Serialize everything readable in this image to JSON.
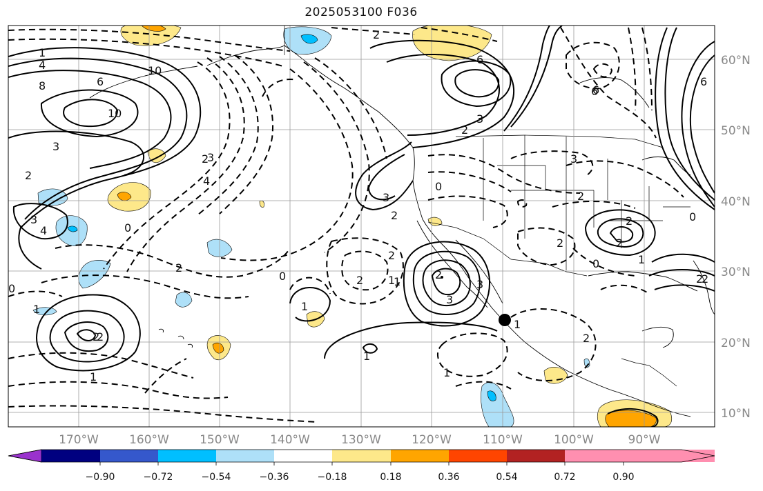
{
  "title": "2025053100 F036",
  "map": {
    "lat_labels": [
      "60°N",
      "50°N",
      "40°N",
      "30°N",
      "20°N",
      "10°N"
    ],
    "lon_labels": [
      "170°W",
      "160°W",
      "150°W",
      "140°W",
      "130°W",
      "120°W",
      "110°W",
      "100°W",
      "90°W"
    ],
    "contour_labels": [
      "1",
      "4",
      "8",
      "6",
      "10",
      "3",
      "2",
      "3",
      "4",
      "2",
      "1",
      "10",
      "6",
      "6",
      "3",
      "2",
      "3",
      "0",
      "2",
      "2",
      "1",
      "0",
      "2",
      "2",
      "0",
      "1",
      "2",
      "3",
      "2",
      "2",
      "2",
      "1",
      "1",
      "3",
      "2",
      "6",
      "2",
      "1",
      "2",
      "1",
      "3",
      "4",
      "6",
      "2",
      "0",
      "2",
      "1",
      "0",
      "3",
      "1",
      "0",
      "2",
      "2"
    ]
  },
  "colorbar": {
    "colors": [
      "#9a32cd",
      "#000080",
      "#3558cc",
      "#00bfff",
      "#aee0f8",
      "#ffffff",
      "#fde88a",
      "#ffa500",
      "#ff4500",
      "#b22222",
      "#ff8fb0"
    ],
    "tick_labels": [
      "−0.90",
      "−0.72",
      "−0.54",
      "−0.36",
      "−0.18",
      "0.18",
      "0.36",
      "0.54",
      "0.72",
      "0.90"
    ]
  }
}
